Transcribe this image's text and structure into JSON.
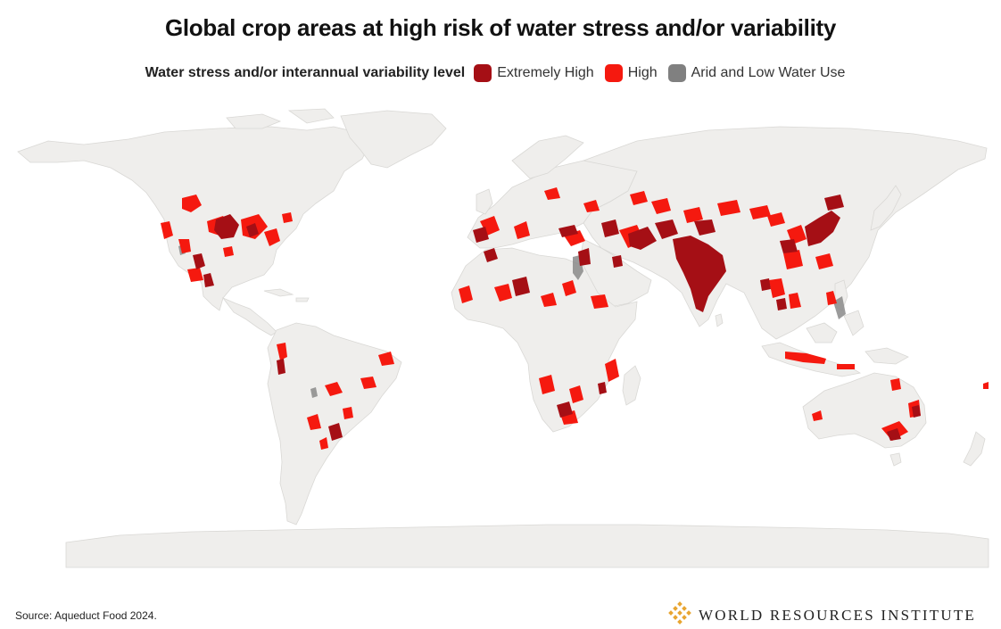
{
  "title": "Global crop areas at high risk of water stress and/or variability",
  "legend": {
    "title": "Water stress and/or interannual variability level",
    "items": [
      {
        "label": "Extremely High",
        "color": "#a50f15"
      },
      {
        "label": "High",
        "color": "#f5190f"
      },
      {
        "label": "Arid and Low Water Use",
        "color": "#808080"
      }
    ]
  },
  "colors": {
    "land": "#efeeec",
    "land_outline": "#d6d5d2",
    "ocean": "#ffffff",
    "logo": "#e8a531"
  },
  "source": "Source: Aqueduct Food 2024.",
  "logo": {
    "text": "WORLD RESOURCES INSTITUTE",
    "icon": "wri-knot-logo-icon"
  }
}
